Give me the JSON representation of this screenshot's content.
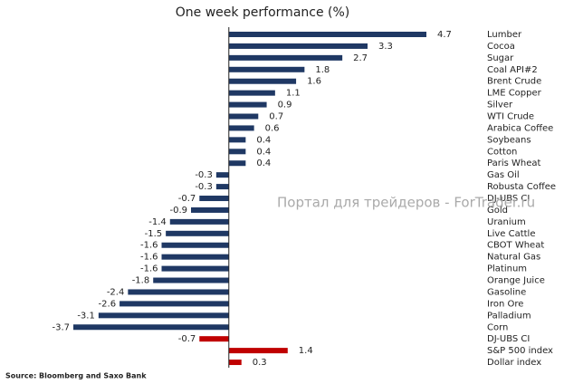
{
  "chart_data": {
    "type": "bar",
    "orientation": "horizontal",
    "title": "One week performance (%)",
    "annotation": "Портал для трейдеров - ForTrader.ru",
    "source": "Source: Bloomberg and Saxo Bank",
    "categories": [
      "Lumber",
      "Cocoa",
      "Sugar",
      "Coal API#2",
      "Brent Crude",
      "LME Copper",
      "Silver",
      "WTI Crude",
      "Arabica Coffee",
      "Soybeans",
      "Cotton",
      "Paris Wheat",
      "Gas Oil",
      "Robusta Coffee",
      "DJ-UBS CI",
      "Gold",
      "Uranium",
      "Live Cattle",
      "CBOT Wheat",
      "Natural Gas",
      "Platinum",
      "Orange Juice",
      "Gasoline",
      "Iron Ore",
      "Palladium",
      "Corn",
      "DJ-UBS CI",
      "S&P 500 index",
      "Dollar index"
    ],
    "values": [
      4.7,
      3.3,
      2.7,
      1.8,
      1.6,
      1.1,
      0.9,
      0.7,
      0.6,
      0.4,
      0.4,
      0.4,
      -0.3,
      -0.3,
      -0.7,
      -0.9,
      -1.4,
      -1.5,
      -1.6,
      -1.6,
      -1.6,
      -1.8,
      -2.4,
      -2.6,
      -3.1,
      -3.7,
      -0.7,
      1.4,
      0.3
    ],
    "colors": [
      "#1f3864",
      "#1f3864",
      "#1f3864",
      "#1f3864",
      "#1f3864",
      "#1f3864",
      "#1f3864",
      "#1f3864",
      "#1f3864",
      "#1f3864",
      "#1f3864",
      "#1f3864",
      "#1f3864",
      "#1f3864",
      "#1f3864",
      "#1f3864",
      "#1f3864",
      "#1f3864",
      "#1f3864",
      "#1f3864",
      "#1f3864",
      "#1f3864",
      "#1f3864",
      "#1f3864",
      "#1f3864",
      "#1f3864",
      "#c00000",
      "#c00000",
      "#c00000"
    ],
    "xlim": [
      -3.7,
      4.7
    ]
  }
}
